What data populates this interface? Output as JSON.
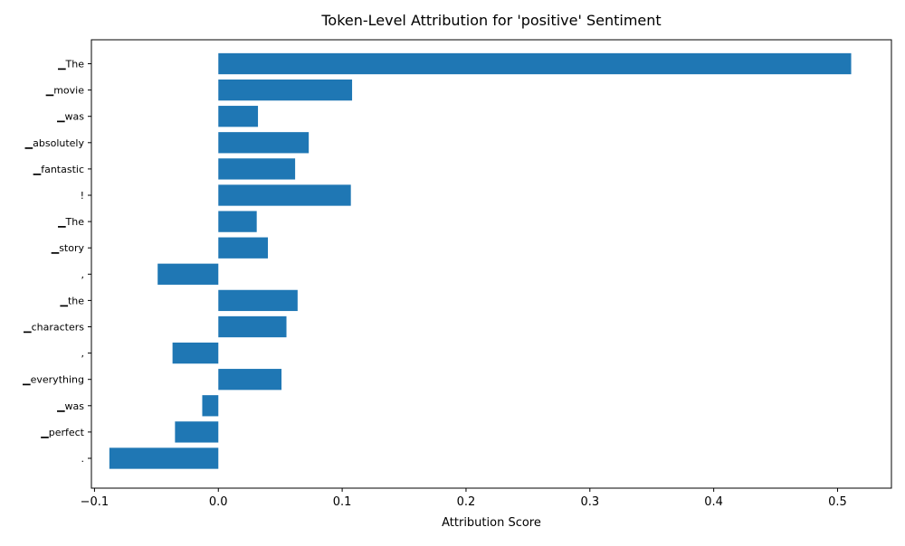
{
  "chart_data": {
    "type": "bar",
    "orientation": "horizontal",
    "title": "Token-Level Attribution for 'positive' Sentiment",
    "xlabel": "Attribution Score",
    "ylabel": "",
    "categories": [
      "▁The",
      "▁movie",
      "▁was",
      "▁absolutely",
      "▁fantastic",
      "!",
      "▁The",
      "▁story",
      ",",
      "▁the",
      "▁characters",
      ",",
      "▁everything",
      "▁was",
      "▁perfect",
      "."
    ],
    "values": [
      0.511,
      0.108,
      0.032,
      0.073,
      0.062,
      0.107,
      0.031,
      0.04,
      -0.049,
      0.064,
      0.055,
      -0.037,
      0.051,
      -0.013,
      -0.035,
      -0.088
    ],
    "xlim": [
      -0.1025,
      0.5435
    ],
    "xticks": [
      -0.1,
      0.0,
      0.1,
      0.2,
      0.3,
      0.4,
      0.5
    ],
    "xtick_labels": [
      "−0.1",
      "0.0",
      "0.1",
      "0.2",
      "0.3",
      "0.4",
      "0.5"
    ],
    "bar_color": "#1f77b4",
    "grid": false,
    "legend": "none"
  }
}
